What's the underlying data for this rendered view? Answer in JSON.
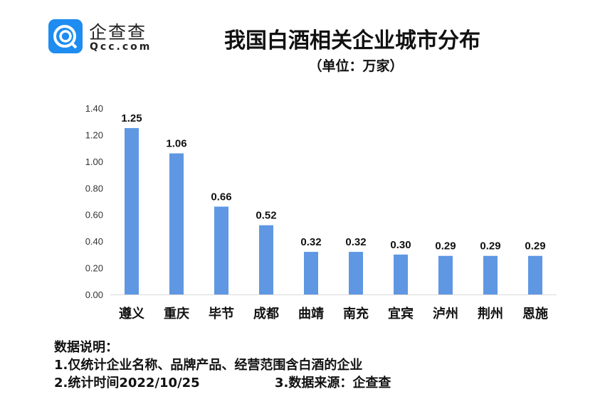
{
  "logo": {
    "cn": "企查查",
    "en": "Qcc.com"
  },
  "chart_data": {
    "type": "bar",
    "title": "我国白酒相关企业城市分布",
    "subtitle": "（单位：万家）",
    "categories": [
      "遵义",
      "重庆",
      "毕节",
      "成都",
      "曲靖",
      "南充",
      "宜宾",
      "泸州",
      "荆州",
      "恩施"
    ],
    "values": [
      1.25,
      1.06,
      0.66,
      0.52,
      0.32,
      0.32,
      0.3,
      0.29,
      0.29,
      0.29
    ],
    "data_labels": [
      "1.25",
      "1.06",
      "0.66",
      "0.52",
      "0.32",
      "0.32",
      "0.30",
      "0.29",
      "0.29",
      "0.29"
    ],
    "yticks": [
      "0.00",
      "0.20",
      "0.40",
      "0.60",
      "0.80",
      "1.00",
      "1.20",
      "1.40"
    ],
    "ylim": [
      0,
      1.4
    ],
    "xlabel": "",
    "ylabel": "",
    "grid": false,
    "bar_color": "#5f97e3"
  },
  "notes": {
    "heading": "数据说明：",
    "line1": "1.仅统计企业名称、品牌产品、经营范围含白酒的企业",
    "line2": "2.统计时间2022/10/25",
    "line3": "3.数据来源：企查查"
  }
}
